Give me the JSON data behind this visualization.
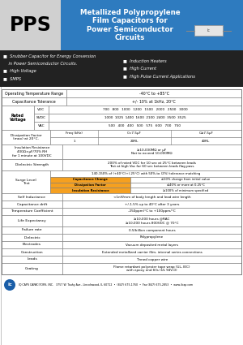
{
  "title_main": "Metallized Polypropylene\nFilm Capacitors for\nPower Semiconductor\nCircuits",
  "part_number": "PPS",
  "header_bg": "#2e7bbf",
  "header_text_color": "#ffffff",
  "pps_bg": "#d0d0d0",
  "features_bg": "#222222",
  "features_left": [
    "■  Snubber Capacitor for Energy Conversion",
    "    in Power Semiconductor Circuits.",
    "■  High Voltage",
    "■  SMPS"
  ],
  "features_right": [
    "■  Induction Heaters",
    "■  High Current",
    "■  High Pulse Current Applications"
  ],
  "table_border_color": "#777777",
  "orange_color": "#f5a020",
  "bg_color": "#ffffff",
  "footer_text": "IQ CAPS CAPACITORS, INC.   3757 W. Touhy Ave., Lincolnwood, IL 60712  •  (847) 675-1760  •  Fax (847) 675-2853  •  www.ilcap.com"
}
